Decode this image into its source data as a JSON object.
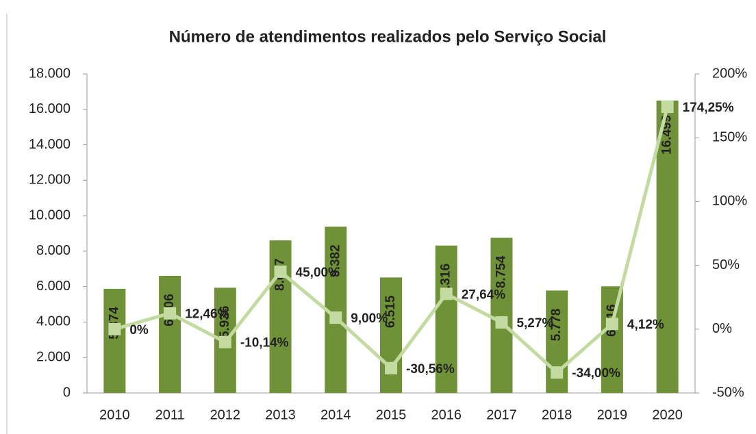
{
  "chart_data": {
    "type": "bar_line",
    "title": "Número de atendimentos realizados pelo Serviço Social",
    "categories": [
      "2010",
      "2011",
      "2012",
      "2013",
      "2014",
      "2015",
      "2016",
      "2017",
      "2018",
      "2019",
      "2020"
    ],
    "series": [
      {
        "type": "bar",
        "color": "#6f9238",
        "values": [
          5874,
          6606,
          5936,
          8607,
          9382,
          6515,
          8316,
          8754,
          5778,
          6016,
          16499
        ],
        "value_labels": [
          "5.874",
          "6.606",
          "5.936",
          "8.607",
          "9.382",
          "6.515",
          "8.316",
          "8.754",
          "5.778",
          "6.016",
          "16.499"
        ]
      },
      {
        "type": "line",
        "axis": "y2",
        "color": "#c3dba0",
        "values": [
          0,
          12.46,
          -10.14,
          45.0,
          9.0,
          -30.56,
          27.64,
          5.27,
          -34.0,
          4.12,
          174.25
        ],
        "value_labels": [
          "0%",
          "12,46%",
          "-10,14%",
          "45,00%",
          "9,00%",
          "-30,56%",
          "27,64%",
          "5,27%",
          "-34,00%",
          "4,12%",
          "174,25%"
        ]
      }
    ],
    "ylim": [
      0,
      18000
    ],
    "yticks": [
      0,
      {
        "value": 2000,
        "label": "2.000"
      },
      {
        "value": 4000,
        "label": "4.000"
      },
      {
        "value": 6000,
        "label": "6.000"
      },
      {
        "value": 8000,
        "label": "8.000"
      },
      {
        "value": 10000,
        "label": "10.000"
      },
      {
        "value": 12000,
        "label": "12.000"
      },
      {
        "value": 14000,
        "label": "14.000"
      },
      {
        "value": 16000,
        "label": "16.000"
      },
      {
        "value": 18000,
        "label": "18.000"
      }
    ],
    "y2lim": [
      -50,
      200
    ],
    "y2ticks": [
      {
        "value": -50,
        "label": "-50%"
      },
      {
        "value": 0,
        "label": "0%"
      },
      {
        "value": 50,
        "label": "50%"
      },
      {
        "value": 100,
        "label": "100%"
      },
      {
        "value": 150,
        "label": "150%"
      },
      {
        "value": 200,
        "label": "200%"
      }
    ]
  }
}
